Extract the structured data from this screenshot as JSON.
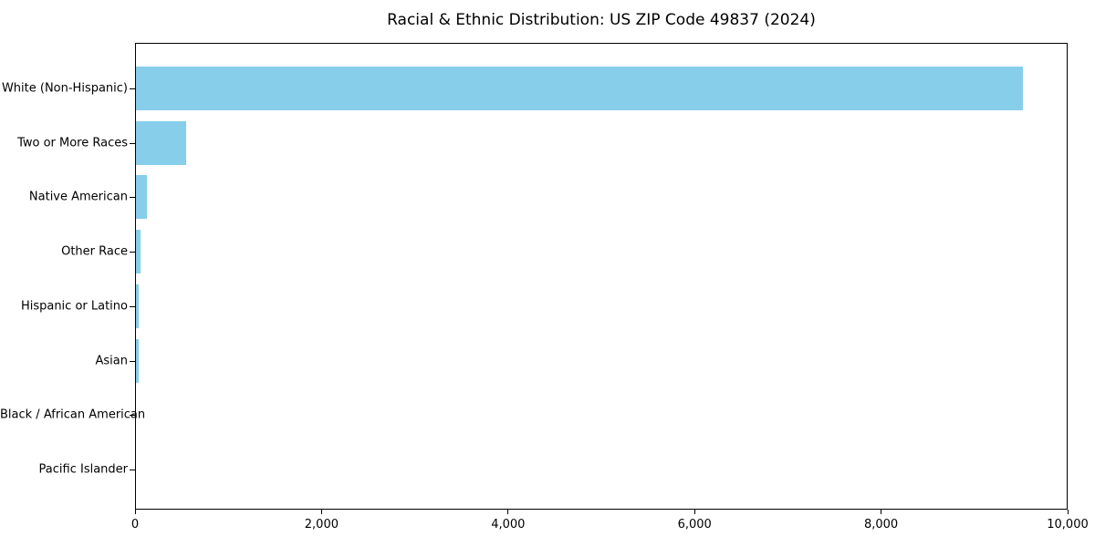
{
  "title": "Racial & Ethnic Distribution: US ZIP Code 49837 (2024)",
  "colors": {
    "bar": "#87CEEB",
    "axis": "#000000",
    "text": "#000000",
    "background": "#FFFFFF"
  },
  "chart_data": {
    "type": "bar",
    "orientation": "horizontal",
    "title": "Racial & Ethnic Distribution: US ZIP Code 49837 (2024)",
    "categories": [
      "White (Non-Hispanic)",
      "Two or More Races",
      "Native American",
      "Other Race",
      "Hispanic or Latino",
      "Asian",
      "Black / African American",
      "Pacific Islander"
    ],
    "values": [
      9530,
      540,
      115,
      50,
      30,
      27,
      0,
      0
    ],
    "xlabel": "",
    "ylabel": "",
    "xlim": [
      0,
      10000
    ],
    "xticks": [
      0,
      2000,
      4000,
      6000,
      8000,
      10000
    ],
    "xtick_labels": [
      "0",
      "2,000",
      "4,000",
      "6,000",
      "8,000",
      "10,000"
    ],
    "legend": "none",
    "grid": false,
    "bar_color": "#87CEEB"
  }
}
